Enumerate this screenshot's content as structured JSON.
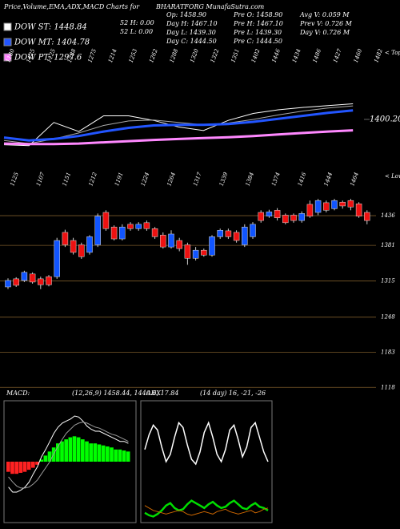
{
  "header": {
    "title": "Price,Volume,EMA,ADX,MACD Charts for",
    "site": "BHARATFORG MunafaSutra.com",
    "legend": [
      {
        "label": "DOW ST: 1448.84",
        "color": "#ffffff"
      },
      {
        "label": "DOW MT: 1404.78",
        "color": "#2255ff"
      },
      {
        "label": "DOW PT: 1297.6",
        "color": "#ff88ff"
      }
    ],
    "info": [
      [
        "52 H: 0.00",
        "52 L: 0.00"
      ],
      [
        "Op: 1458.90",
        "Day H: 1467.10",
        "Day L: 1439.30",
        "Day C: 1444.50"
      ],
      [
        "Pre O: 1458.90",
        "Pre H: 1467.10",
        "Pre L: 1439.30",
        "Pre C: 1444.50"
      ],
      [
        "Avg V: 0.059 M",
        "Prev V: 0.726 M",
        "Day V: 0.726 M"
      ]
    ]
  },
  "chart_data": [
    {
      "type": "line",
      "x": [
        0,
        3,
        6,
        9,
        12,
        15,
        18,
        21,
        24,
        27,
        30,
        33,
        36,
        39,
        42
      ],
      "xlim": [
        0,
        44
      ],
      "ylim": [
        1251,
        1637
      ],
      "yticks": [
        {
          "value": 1400.2,
          "label": "1400.20"
        }
      ],
      "marker_label": "< Tops",
      "marker_values": [
        "1180",
        "1125",
        "1125",
        "1288",
        "1275",
        "1214",
        "1253",
        "1262",
        "1288",
        "1320",
        "1322",
        "1351",
        "1402",
        "1446",
        "1434",
        "1486",
        "1427",
        "1460",
        "1482"
      ],
      "series": [
        {
          "color": "#ffffff",
          "width": 1,
          "values": [
            1316,
            1313,
            1390,
            1360,
            1412,
            1412,
            1397,
            1375,
            1363,
            1397,
            1420,
            1432,
            1440,
            1446,
            1452
          ]
        },
        {
          "color": "#aaaaaa",
          "width": 1,
          "values": [
            1330,
            1320,
            1335,
            1355,
            1380,
            1395,
            1398,
            1390,
            1382,
            1388,
            1400,
            1415,
            1428,
            1438,
            1445
          ]
        },
        {
          "color": "#2255ff",
          "width": 3,
          "values": [
            1340,
            1330,
            1335,
            1345,
            1360,
            1372,
            1380,
            1382,
            1382,
            1385,
            1392,
            1402,
            1412,
            1422,
            1430
          ]
        },
        {
          "color": "#ff88ff",
          "width": 3,
          "values": [
            1320,
            1318,
            1318,
            1320,
            1324,
            1328,
            1332,
            1335,
            1338,
            1341,
            1345,
            1350,
            1355,
            1360,
            1364
          ]
        }
      ]
    },
    {
      "type": "candlestick",
      "ylim": [
        1108,
        1494
      ],
      "yticks": [
        1436,
        1381,
        1315,
        1248,
        1183,
        1118
      ],
      "grid": true,
      "up_color": "#1155ff",
      "down_color": "#ee1111",
      "marker_label": "< Lows",
      "marker_values": [
        "1125",
        "1107",
        "1151",
        "1212",
        "1191",
        "1224",
        "1264",
        "1317",
        "1339",
        "1384",
        "1374",
        "1416",
        "1444",
        "1464"
      ],
      "open": [
        1304,
        1319,
        1316,
        1328,
        1319,
        1323,
        1323,
        1405,
        1390,
        1382,
        1368,
        1382,
        1442,
        1415,
        1393,
        1420,
        1412,
        1423,
        1412,
        1400,
        1378,
        1390,
        1382,
        1357,
        1372,
        1363,
        1397,
        1408,
        1405,
        1382,
        1397,
        1442,
        1435,
        1446,
        1437,
        1437,
        1427,
        1457,
        1442,
        1460,
        1449,
        1461,
        1464,
        1458,
        1442
      ],
      "high": [
        1320,
        1322,
        1334,
        1331,
        1323,
        1326,
        1395,
        1410,
        1395,
        1386,
        1400,
        1440,
        1446,
        1418,
        1420,
        1424,
        1424,
        1427,
        1415,
        1405,
        1409,
        1395,
        1386,
        1378,
        1375,
        1400,
        1412,
        1412,
        1409,
        1420,
        1424,
        1446,
        1447,
        1450,
        1440,
        1440,
        1444,
        1464,
        1467,
        1464,
        1467,
        1464,
        1467,
        1461,
        1446
      ],
      "low": [
        1300,
        1304,
        1313,
        1310,
        1300,
        1305,
        1319,
        1378,
        1364,
        1356,
        1364,
        1378,
        1408,
        1390,
        1390,
        1408,
        1408,
        1408,
        1393,
        1375,
        1375,
        1370,
        1345,
        1353,
        1360,
        1360,
        1393,
        1393,
        1386,
        1378,
        1393,
        1423,
        1432,
        1427,
        1420,
        1423,
        1423,
        1432,
        1437,
        1442,
        1446,
        1449,
        1446,
        1432,
        1420
      ],
      "close": [
        1316,
        1307,
        1331,
        1313,
        1308,
        1308,
        1390,
        1382,
        1368,
        1360,
        1397,
        1435,
        1412,
        1393,
        1415,
        1412,
        1420,
        1412,
        1397,
        1378,
        1402,
        1375,
        1357,
        1372,
        1363,
        1397,
        1409,
        1397,
        1390,
        1415,
        1420,
        1427,
        1443,
        1432,
        1423,
        1427,
        1440,
        1435,
        1464,
        1446,
        1464,
        1454,
        1452,
        1435,
        1427
      ]
    },
    {
      "type": "macd",
      "title": "MACD:",
      "subtitle": "(12,26,9) 1458.44, 1440.6, 17.84",
      "ylim": [
        -60,
        60
      ],
      "up_color": "#00ff00",
      "down_color": "#ff2222",
      "histogram": [
        -10,
        -12,
        -12,
        -11,
        -10,
        -8,
        -6,
        -3,
        2,
        6,
        10,
        14,
        18,
        20,
        22,
        24,
        25,
        24,
        22,
        20,
        18,
        18,
        17,
        16,
        15,
        14,
        12,
        12,
        11,
        10
      ],
      "series": [
        {
          "color": "#ffffff",
          "values": [
            -25,
            -30,
            -30,
            -28,
            -25,
            -20,
            -12,
            -5,
            5,
            12,
            20,
            28,
            34,
            38,
            40,
            42,
            45,
            44,
            40,
            35,
            32,
            30,
            30,
            28,
            26,
            24,
            22,
            20,
            20,
            18
          ]
        },
        {
          "color": "#999999",
          "values": [
            -15,
            -20,
            -24,
            -26,
            -26,
            -25,
            -22,
            -18,
            -12,
            -6,
            0,
            8,
            15,
            22,
            28,
            32,
            36,
            38,
            39,
            38,
            36,
            34,
            33,
            31,
            29,
            27,
            26,
            24,
            22,
            20
          ]
        }
      ]
    },
    {
      "type": "adx",
      "title": "ADX",
      "subtitle": "(14 day) 16, -21, -26",
      "ylim": [
        0,
        100
      ],
      "series": [
        {
          "color": "#ffffff",
          "width": 1.5,
          "values": [
            60,
            72,
            80,
            76,
            62,
            50,
            56,
            70,
            82,
            78,
            64,
            52,
            48,
            58,
            74,
            82,
            70,
            56,
            50,
            60,
            76,
            80,
            68,
            54,
            62,
            78,
            82,
            70,
            58,
            50
          ]
        },
        {
          "color": "#00dd00",
          "width": 2.5,
          "values": [
            8,
            6,
            5,
            7,
            10,
            14,
            16,
            12,
            10,
            11,
            15,
            18,
            16,
            14,
            12,
            15,
            17,
            14,
            12,
            13,
            16,
            18,
            15,
            12,
            11,
            14,
            16,
            13,
            12,
            10
          ]
        },
        {
          "color": "#cc6600",
          "width": 1,
          "values": [
            14,
            12,
            10,
            9,
            8,
            7,
            8,
            9,
            10,
            9,
            7,
            6,
            7,
            8,
            9,
            8,
            7,
            9,
            10,
            11,
            9,
            8,
            7,
            8,
            9,
            10,
            8,
            9,
            11,
            12
          ]
        }
      ]
    }
  ]
}
